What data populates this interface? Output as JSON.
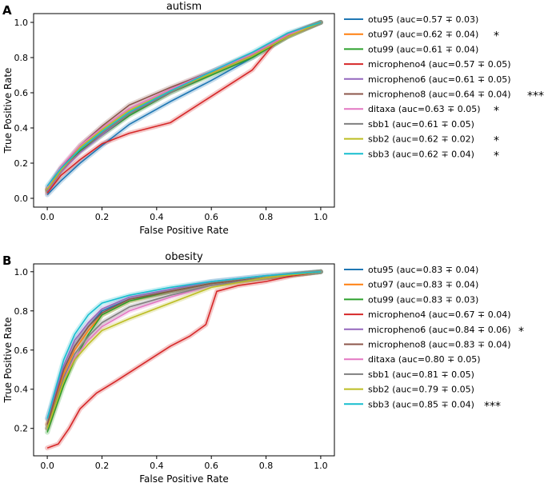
{
  "chart_data": [
    {
      "panel_label": "A",
      "type": "line",
      "title": "autism",
      "xlabel": "False Positive Rate",
      "ylabel": "True Positive Rate",
      "xlim": [
        -0.05,
        1.05
      ],
      "ylim": [
        -0.05,
        1.05
      ],
      "xticks": [
        "0.0",
        "0.2",
        "0.4",
        "0.6",
        "0.8",
        "1.0"
      ],
      "yticks": [
        "0.0",
        "0.2",
        "0.4",
        "0.6",
        "0.8",
        "1.0"
      ],
      "grid": false,
      "legend_position": "right",
      "series": [
        {
          "name": "otu95 (auc=0.57 ∓ 0.03)",
          "significance": "",
          "color": "#1f77b4",
          "x": [
            0,
            0.05,
            0.12,
            0.2,
            0.3,
            0.45,
            0.6,
            0.75,
            0.88,
            1.0
          ],
          "y": [
            0.02,
            0.1,
            0.2,
            0.3,
            0.42,
            0.55,
            0.67,
            0.8,
            0.92,
            1.0
          ]
        },
        {
          "name": "otu97 (auc=0.62 ∓ 0.04)",
          "significance": "*",
          "color": "#ff7f0e",
          "x": [
            0,
            0.05,
            0.12,
            0.2,
            0.3,
            0.45,
            0.6,
            0.75,
            0.88,
            1.0
          ],
          "y": [
            0.05,
            0.16,
            0.27,
            0.37,
            0.49,
            0.61,
            0.71,
            0.81,
            0.93,
            1.0
          ]
        },
        {
          "name": "otu99 (auc=0.61 ∓ 0.04)",
          "significance": "",
          "color": "#2ca02c",
          "x": [
            0,
            0.05,
            0.12,
            0.2,
            0.3,
            0.45,
            0.6,
            0.75,
            0.88,
            1.0
          ],
          "y": [
            0.04,
            0.17,
            0.27,
            0.36,
            0.47,
            0.6,
            0.7,
            0.8,
            0.92,
            1.0
          ]
        },
        {
          "name": "micropheno4 (auc=0.57 ∓ 0.05)",
          "significance": "",
          "color": "#d62728",
          "x": [
            0,
            0.05,
            0.12,
            0.2,
            0.3,
            0.45,
            0.6,
            0.75,
            0.83,
            0.9,
            1.0
          ],
          "y": [
            0.03,
            0.13,
            0.22,
            0.31,
            0.37,
            0.43,
            0.58,
            0.73,
            0.88,
            0.94,
            1.0
          ]
        },
        {
          "name": "micropheno6 (auc=0.61 ∓ 0.05)",
          "significance": "",
          "color": "#9467bd",
          "x": [
            0,
            0.05,
            0.12,
            0.2,
            0.3,
            0.45,
            0.6,
            0.75,
            0.88,
            1.0
          ],
          "y": [
            0.04,
            0.15,
            0.26,
            0.36,
            0.48,
            0.61,
            0.71,
            0.81,
            0.93,
            1.0
          ]
        },
        {
          "name": "micropheno8 (auc=0.64 ∓ 0.04)",
          "significance": "***",
          "color": "#8c564b",
          "x": [
            0,
            0.05,
            0.12,
            0.2,
            0.3,
            0.45,
            0.6,
            0.75,
            0.88,
            1.0
          ],
          "y": [
            0.05,
            0.17,
            0.3,
            0.41,
            0.53,
            0.63,
            0.72,
            0.82,
            0.93,
            1.0
          ]
        },
        {
          "name": "ditaxa (auc=0.63 ∓ 0.05)",
          "significance": "*",
          "color": "#e377c2",
          "x": [
            0,
            0.05,
            0.12,
            0.2,
            0.3,
            0.45,
            0.6,
            0.75,
            0.88,
            1.0
          ],
          "y": [
            0.06,
            0.18,
            0.3,
            0.4,
            0.51,
            0.62,
            0.72,
            0.82,
            0.93,
            1.0
          ]
        },
        {
          "name": "sbb1 (auc=0.61 ∓ 0.05)",
          "significance": "",
          "color": "#7f7f7f",
          "x": [
            0,
            0.05,
            0.12,
            0.2,
            0.3,
            0.45,
            0.6,
            0.75,
            0.88,
            1.0
          ],
          "y": [
            0.05,
            0.16,
            0.28,
            0.37,
            0.48,
            0.6,
            0.71,
            0.81,
            0.92,
            1.0
          ]
        },
        {
          "name": "sbb2 (auc=0.62 ∓ 0.02)",
          "significance": "*",
          "color": "#bcbd22",
          "x": [
            0,
            0.05,
            0.12,
            0.2,
            0.3,
            0.45,
            0.6,
            0.75,
            0.88,
            1.0
          ],
          "y": [
            0.05,
            0.16,
            0.29,
            0.39,
            0.5,
            0.61,
            0.71,
            0.81,
            0.92,
            1.0
          ]
        },
        {
          "name": "sbb3 (auc=0.62 ∓ 0.04)",
          "significance": "*",
          "color": "#17becf",
          "x": [
            0,
            0.05,
            0.12,
            0.2,
            0.3,
            0.45,
            0.6,
            0.75,
            0.88,
            1.0
          ],
          "y": [
            0.07,
            0.17,
            0.28,
            0.38,
            0.49,
            0.61,
            0.72,
            0.83,
            0.94,
            1.0
          ]
        }
      ]
    },
    {
      "panel_label": "B",
      "type": "line",
      "title": "obesity",
      "xlabel": "False Positive Rate",
      "ylabel": "True Positive Rate",
      "xlim": [
        -0.05,
        1.05
      ],
      "ylim": [
        0.06,
        1.04
      ],
      "xticks": [
        "0.0",
        "0.2",
        "0.4",
        "0.6",
        "0.8",
        "1.0"
      ],
      "yticks": [
        "0.2",
        "0.4",
        "0.6",
        "0.8",
        "1.0"
      ],
      "grid": false,
      "legend_position": "right",
      "series": [
        {
          "name": "otu95 (auc=0.83 ∓ 0.04)",
          "significance": "",
          "color": "#1f77b4",
          "x": [
            0,
            0.03,
            0.06,
            0.1,
            0.15,
            0.2,
            0.3,
            0.45,
            0.6,
            0.8,
            1.0
          ],
          "y": [
            0.2,
            0.35,
            0.5,
            0.62,
            0.72,
            0.8,
            0.86,
            0.9,
            0.94,
            0.97,
            1.0
          ]
        },
        {
          "name": "otu97 (auc=0.83 ∓ 0.04)",
          "significance": "",
          "color": "#ff7f0e",
          "x": [
            0,
            0.03,
            0.06,
            0.1,
            0.15,
            0.2,
            0.3,
            0.45,
            0.6,
            0.8,
            1.0
          ],
          "y": [
            0.22,
            0.35,
            0.48,
            0.6,
            0.7,
            0.78,
            0.85,
            0.9,
            0.94,
            0.97,
            1.0
          ]
        },
        {
          "name": "otu99 (auc=0.83 ∓ 0.03)",
          "significance": "",
          "color": "#2ca02c",
          "x": [
            0,
            0.03,
            0.06,
            0.1,
            0.15,
            0.2,
            0.3,
            0.45,
            0.6,
            0.8,
            1.0
          ],
          "y": [
            0.18,
            0.3,
            0.42,
            0.55,
            0.68,
            0.78,
            0.85,
            0.9,
            0.94,
            0.97,
            1.0
          ]
        },
        {
          "name": "micropheno4 (auc=0.67 ∓ 0.04)",
          "significance": "",
          "color": "#d62728",
          "x": [
            0,
            0.04,
            0.08,
            0.12,
            0.18,
            0.25,
            0.35,
            0.45,
            0.52,
            0.58,
            0.62,
            0.7,
            0.8,
            0.9,
            1.0
          ],
          "y": [
            0.1,
            0.12,
            0.2,
            0.3,
            0.38,
            0.44,
            0.53,
            0.62,
            0.67,
            0.73,
            0.9,
            0.93,
            0.95,
            0.98,
            1.0
          ]
        },
        {
          "name": "micropheno6 (auc=0.84 ∓ 0.06)",
          "significance": "*",
          "color": "#9467bd",
          "x": [
            0,
            0.03,
            0.06,
            0.1,
            0.15,
            0.2,
            0.3,
            0.45,
            0.6,
            0.8,
            1.0
          ],
          "y": [
            0.25,
            0.38,
            0.52,
            0.65,
            0.74,
            0.81,
            0.87,
            0.91,
            0.95,
            0.98,
            1.0
          ]
        },
        {
          "name": "micropheno8 (auc=0.83 ∓ 0.04)",
          "significance": "",
          "color": "#8c564b",
          "x": [
            0,
            0.03,
            0.06,
            0.1,
            0.15,
            0.2,
            0.3,
            0.45,
            0.6,
            0.8,
            1.0
          ],
          "y": [
            0.22,
            0.36,
            0.5,
            0.62,
            0.72,
            0.79,
            0.86,
            0.9,
            0.94,
            0.97,
            1.0
          ]
        },
        {
          "name": "ditaxa (auc=0.80 ∓ 0.05)",
          "significance": "",
          "color": "#e377c2",
          "x": [
            0,
            0.03,
            0.06,
            0.1,
            0.15,
            0.2,
            0.3,
            0.45,
            0.6,
            0.8,
            1.0
          ],
          "y": [
            0.2,
            0.32,
            0.45,
            0.56,
            0.65,
            0.72,
            0.8,
            0.87,
            0.93,
            0.97,
            1.0
          ]
        },
        {
          "name": "sbb1 (auc=0.81 ∓ 0.05)",
          "significance": "",
          "color": "#7f7f7f",
          "x": [
            0,
            0.03,
            0.06,
            0.1,
            0.15,
            0.2,
            0.3,
            0.45,
            0.6,
            0.8,
            1.0
          ],
          "y": [
            0.2,
            0.33,
            0.46,
            0.58,
            0.67,
            0.74,
            0.82,
            0.88,
            0.93,
            0.97,
            1.0
          ]
        },
        {
          "name": "sbb2 (auc=0.79 ∓ 0.05)",
          "significance": "",
          "color": "#bcbd22",
          "x": [
            0,
            0.03,
            0.06,
            0.1,
            0.15,
            0.2,
            0.3,
            0.45,
            0.6,
            0.8,
            1.0
          ],
          "y": [
            0.2,
            0.32,
            0.44,
            0.55,
            0.63,
            0.7,
            0.76,
            0.84,
            0.92,
            0.97,
            1.0
          ]
        },
        {
          "name": "sbb3 (auc=0.85 ∓ 0.04)",
          "significance": "***",
          "color": "#17becf",
          "x": [
            0,
            0.03,
            0.06,
            0.1,
            0.15,
            0.2,
            0.3,
            0.45,
            0.6,
            0.8,
            1.0
          ],
          "y": [
            0.25,
            0.4,
            0.55,
            0.68,
            0.78,
            0.84,
            0.88,
            0.92,
            0.95,
            0.98,
            1.0
          ]
        }
      ]
    }
  ]
}
